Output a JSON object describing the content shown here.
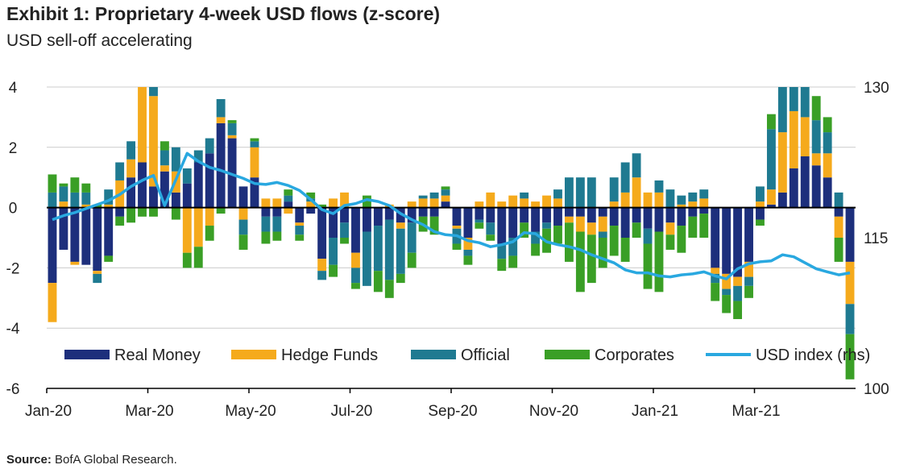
{
  "colors": {
    "real_money": "#1d2f7c",
    "hedge_funds": "#f5aa1c",
    "official": "#1f7a91",
    "corporates": "#3a9f26",
    "usd_index": "#29a8e0",
    "grid": "#cccccc",
    "axis": "#000000"
  },
  "chart_data": {
    "type": "bar",
    "stacked": true,
    "title": "Exhibit 1: Proprietary 4-week USD flows (z-score)",
    "subtitle": "USD sell-off accelerating",
    "y_left": {
      "min": -6,
      "max": 4,
      "ticks": [
        4,
        2,
        0,
        -2,
        -4,
        -6
      ]
    },
    "y_right": {
      "label": "",
      "min": 100,
      "max": 130,
      "ticks": [
        130,
        115,
        100
      ]
    },
    "x_tick_labels": [
      "Jan-20",
      "Mar-20",
      "May-20",
      "Jul-20",
      "Sep-20",
      "Nov-20",
      "Jan-21",
      "Mar-21"
    ],
    "x_tick_index": [
      0,
      9,
      18,
      27,
      36,
      45,
      54,
      63
    ],
    "grid": true,
    "legend_position": "bottom",
    "legend": [
      "Real Money",
      "Hedge Funds",
      "Official",
      "Corporates",
      "USD index (rhs)"
    ],
    "n_weeks": 72,
    "series": [
      {
        "name": "Real Money",
        "values": [
          -2.5,
          -1.4,
          -1.8,
          -1.9,
          -2.1,
          -1.6,
          -0.3,
          1,
          1.5,
          0.7,
          1.2,
          0.5,
          0.8,
          1.5,
          1.8,
          2.8,
          2.3,
          0.7,
          1,
          -0.3,
          -0.3,
          0.2,
          -0.5,
          -0.2,
          -1.7,
          -1,
          -0.5,
          -1.5,
          -0.8,
          -0.6,
          -0.4,
          -0.5,
          -0.5,
          -0.3,
          -0.3,
          0.2,
          -0.6,
          -1,
          -0.4,
          -0.5,
          -1.2,
          -1,
          -0.5,
          -0.8,
          -0.5,
          -0.6,
          -0.3,
          -0.3,
          -0.5,
          -0.3,
          -0.6,
          -1,
          -0.5,
          -0.7,
          -0.8,
          -0.5,
          -0.6,
          -0.3,
          -0.2,
          -2,
          -2.2,
          -2.3,
          -1.8,
          -0.4,
          0.1,
          0.5,
          1.3,
          1.7,
          1.4,
          1,
          -0.3,
          -1.8
        ]
      },
      {
        "name": "Hedge Funds",
        "values": [
          -1.3,
          0.2,
          -0.1,
          0.1,
          -0.1,
          0.1,
          0.9,
          0.6,
          2.9,
          3,
          0.2,
          0.7,
          -1.5,
          -1.3,
          -0.6,
          0.2,
          0.1,
          -0.4,
          1,
          0.3,
          0.3,
          -0.2,
          -0.1,
          0.2,
          -0.4,
          0.3,
          0.5,
          -0.5,
          0,
          0,
          0.1,
          -0.2,
          0.2,
          0.3,
          0.3,
          0.2,
          -0.1,
          -0.4,
          0.2,
          0.5,
          0.2,
          0.4,
          0.3,
          0.2,
          0.4,
          0.3,
          -0.2,
          -0.5,
          -0.4,
          -0.5,
          0.2,
          0.5,
          1,
          0.5,
          0.5,
          -0.4,
          0.1,
          0.2,
          0.3,
          -0.2,
          -0.5,
          -0.3,
          -0.5,
          0.2,
          0.5,
          2,
          1.9,
          1.3,
          0.4,
          0.8,
          -0.7,
          -1.4
        ]
      },
      {
        "name": "Official",
        "values": [
          0.5,
          0.5,
          0.5,
          0.4,
          -0.3,
          0.5,
          0.6,
          0.6,
          0.8,
          1.1,
          0.5,
          0.8,
          0.5,
          0.4,
          0.5,
          0.6,
          0.4,
          -0.5,
          0.2,
          -0.5,
          -0.5,
          0.2,
          -0.3,
          0.1,
          -0.3,
          -0.9,
          -0.5,
          -0.5,
          -1.8,
          -1.5,
          -2,
          -1.5,
          -1,
          0.1,
          0.2,
          0.2,
          -0.5,
          -0.2,
          -0.1,
          -0.4,
          -0.5,
          -0.6,
          0.2,
          -0.4,
          -0.2,
          0.3,
          1,
          1,
          1,
          -0.2,
          0.8,
          1,
          0.8,
          -0.5,
          0.4,
          0.6,
          0.3,
          0.3,
          0.3,
          -0.3,
          -0.2,
          -0.5,
          -0.3,
          0.5,
          2,
          1.5,
          1.3,
          1.3,
          1.1,
          0.7,
          0.5,
          -1
        ]
      },
      {
        "name": "Corporates",
        "values": [
          0.6,
          0.1,
          0.5,
          0.3,
          0.1,
          -0.2,
          -0.3,
          -0.5,
          -0.3,
          -0.3,
          0.3,
          -0.4,
          -0.5,
          -0.7,
          -0.5,
          -0.2,
          0.1,
          -0.5,
          0.1,
          -0.4,
          -0.3,
          0.2,
          -0.2,
          0.2,
          0.1,
          -0.4,
          -0.2,
          -0.2,
          0.4,
          -0.7,
          -0.6,
          -0.3,
          -0.5,
          -0.5,
          -0.6,
          0.1,
          -0.2,
          -0.3,
          -0.2,
          -0.2,
          -0.4,
          -0.4,
          -0.5,
          -0.4,
          -0.8,
          -0.6,
          -1.3,
          -2,
          -1.6,
          -1,
          -1,
          -0.8,
          -0.5,
          -1.5,
          -2,
          -0.5,
          -0.9,
          -0.7,
          -0.8,
          -0.6,
          -0.6,
          -0.6,
          -0.4,
          -0.2,
          0.5,
          0.5,
          0.7,
          1,
          0.8,
          0.5,
          -0.8,
          -1.5
        ]
      },
      {
        "name": "USD index (rhs)",
        "axis": "right",
        "values": [
          116.8,
          117.2,
          117.5,
          117.9,
          118.3,
          118.7,
          119.3,
          120.1,
          120.7,
          121.2,
          118.2,
          120.8,
          123.4,
          122.6,
          122,
          121.7,
          121.3,
          120.9,
          120.4,
          120.3,
          120.5,
          120.2,
          119.7,
          118.8,
          117.8,
          117.4,
          118.2,
          118.4,
          118.8,
          118.6,
          118.2,
          117.4,
          116.8,
          116.3,
          115.6,
          115.3,
          115.2,
          114.7,
          114.5,
          114.1,
          114.3,
          114.6,
          115.5,
          115.4,
          114.6,
          114.3,
          114.1,
          113.8,
          113.3,
          112.9,
          112.5,
          111.8,
          111.5,
          111.5,
          111.2,
          111.1,
          111.3,
          111.4,
          111.6,
          111.2,
          110.9,
          111.9,
          112.4,
          112.6,
          112.7,
          113.3,
          113.1,
          112.5,
          111.9,
          111.6,
          111.3,
          111.5
        ]
      }
    ]
  },
  "source": {
    "label": "Source:",
    "text": "BofA Global Research."
  }
}
